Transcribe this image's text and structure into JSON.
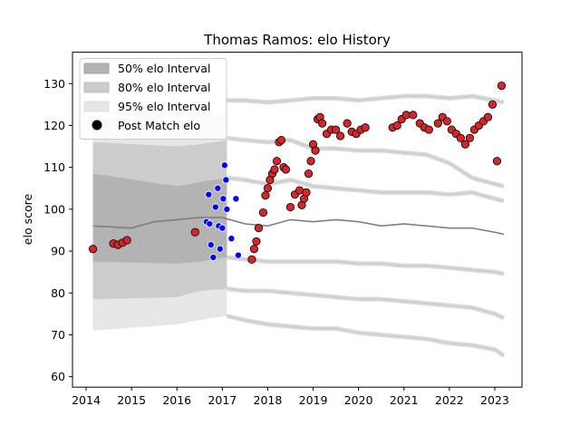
{
  "chart_data": {
    "type": "scatter",
    "title": "Thomas Ramos: elo History",
    "xlabel": "",
    "ylabel": "elo score",
    "xlim": [
      2013.7,
      2023.6
    ],
    "ylim": [
      57.5,
      137.5
    ],
    "xticks": [
      2014,
      2015,
      2016,
      2017,
      2018,
      2019,
      2020,
      2021,
      2022,
      2023
    ],
    "yticks": [
      60,
      70,
      80,
      90,
      100,
      110,
      120,
      130
    ],
    "grid": false,
    "legend_placement": "top-left",
    "legend": [
      {
        "key": "band50",
        "label": "50% elo Interval"
      },
      {
        "key": "band80",
        "label": "80% elo Interval"
      },
      {
        "key": "band95",
        "label": "95% elo Interval"
      },
      {
        "key": "points",
        "label": "Post Match elo"
      }
    ],
    "colors": {
      "band50": "#b3b3b3",
      "band80": "#cccccc",
      "band95": "#e6e6e6",
      "mean_line": "#7f7f7f",
      "point_red": "#d62728",
      "point_blue": "#0000ff",
      "point_edge": "#1f1f6e"
    },
    "intervals": {
      "shaded_range": [
        2014.15,
        2017.1
      ],
      "p50": {
        "x": [
          2014.15,
          2016.0,
          2016.5,
          2017.1
        ],
        "lower": [
          87.5,
          87.0,
          87.5,
          88.5
        ],
        "upper": [
          108.5,
          105.5,
          106.5,
          107.5
        ]
      },
      "p80": {
        "x": [
          2014.15,
          2016.0,
          2016.5,
          2017.1
        ],
        "lower": [
          78.5,
          79.0,
          80.5,
          81.0
        ],
        "upper": [
          116.0,
          115.0,
          115.5,
          116.5
        ]
      },
      "p95": {
        "x": [
          2014.15,
          2016.0,
          2016.5,
          2017.1
        ],
        "lower": [
          71.0,
          72.5,
          73.5,
          74.5
        ],
        "upper": [
          122.0,
          121.0,
          122.5,
          123.0
        ]
      }
    },
    "mean_line": {
      "x": [
        2014.15,
        2015.0,
        2015.5,
        2016.0,
        2016.5,
        2017.0,
        2017.5,
        2018.0,
        2018.5,
        2019.0,
        2019.5,
        2020.0,
        2020.5,
        2021.0,
        2021.5,
        2022.0,
        2022.5,
        2023.0,
        2023.2
      ],
      "y": [
        96.0,
        95.5,
        97.0,
        97.5,
        98.0,
        98.0,
        96.5,
        96.0,
        97.5,
        97.0,
        97.5,
        97.0,
        96.0,
        96.5,
        96.0,
        95.5,
        95.5,
        94.5,
        94.0
      ]
    },
    "faint_tracks": {
      "x": [
        2017.1,
        2017.5,
        2018.0,
        2018.5,
        2019.0,
        2019.5,
        2020.0,
        2020.5,
        2021.0,
        2021.5,
        2022.0,
        2022.5,
        2023.0,
        2023.2
      ],
      "series": [
        {
          "band": "upper95",
          "y": [
            126.0,
            126.0,
            125.5,
            126.0,
            126.5,
            126.5,
            126.0,
            126.5,
            127.0,
            127.0,
            126.5,
            127.0,
            126.0,
            125.5
          ]
        },
        {
          "band": "upper80",
          "y": [
            117.0,
            116.5,
            116.0,
            116.5,
            114.5,
            114.5,
            114.0,
            114.0,
            113.5,
            113.0,
            111.0,
            107.5,
            106.0,
            105.5
          ]
        },
        {
          "band": "upper50",
          "y": [
            107.5,
            107.0,
            106.0,
            107.0,
            105.5,
            105.0,
            104.5,
            104.0,
            104.0,
            104.0,
            103.5,
            104.0,
            102.5,
            102.0
          ]
        },
        {
          "band": "lower50",
          "y": [
            88.5,
            88.0,
            87.5,
            87.5,
            87.5,
            87.5,
            87.0,
            87.0,
            86.5,
            86.5,
            86.0,
            85.5,
            85.0,
            84.5
          ]
        },
        {
          "band": "lower80",
          "y": [
            81.0,
            80.5,
            80.5,
            80.0,
            79.5,
            79.0,
            78.5,
            78.5,
            78.0,
            77.5,
            77.0,
            76.5,
            75.0,
            74.0
          ]
        },
        {
          "band": "lower95",
          "y": [
            74.5,
            73.5,
            72.5,
            72.0,
            71.5,
            71.5,
            70.5,
            70.0,
            69.5,
            69.0,
            68.0,
            67.5,
            66.5,
            65.0
          ]
        }
      ]
    },
    "points_red": {
      "x": [
        2014.15,
        2014.6,
        2014.7,
        2014.8,
        2014.9,
        2016.4,
        2017.65,
        2017.7,
        2017.75,
        2017.8,
        2017.9,
        2017.95,
        2018.0,
        2018.05,
        2018.1,
        2018.15,
        2018.2,
        2018.25,
        2018.3,
        2018.35,
        2018.4,
        2018.5,
        2018.6,
        2018.7,
        2018.75,
        2018.8,
        2018.85,
        2018.9,
        2018.95,
        2019.0,
        2019.05,
        2019.1,
        2019.15,
        2019.2,
        2019.3,
        2019.4,
        2019.5,
        2019.6,
        2019.75,
        2019.85,
        2019.95,
        2020.05,
        2020.15,
        2020.75,
        2020.85,
        2020.95,
        2021.05,
        2021.2,
        2021.35,
        2021.45,
        2021.55,
        2021.75,
        2021.85,
        2021.95,
        2022.05,
        2022.15,
        2022.25,
        2022.35,
        2022.45,
        2022.55,
        2022.65,
        2022.75,
        2022.85,
        2022.95,
        2023.05,
        2023.15
      ],
      "y": [
        90.5,
        91.8,
        91.5,
        92.0,
        92.6,
        94.5,
        88.0,
        90.5,
        92.3,
        95.5,
        99.2,
        103.3,
        105.0,
        107.0,
        108.5,
        109.5,
        111.5,
        116.0,
        116.5,
        110.0,
        109.5,
        100.5,
        103.5,
        104.5,
        101.0,
        102.5,
        104.0,
        108.5,
        111.5,
        115.5,
        114.0,
        121.5,
        122.0,
        120.5,
        118.0,
        119.0,
        119.0,
        117.5,
        120.5,
        118.5,
        118.0,
        119.0,
        119.5,
        119.5,
        120.0,
        121.5,
        122.5,
        122.5,
        120.5,
        119.5,
        119.0,
        120.5,
        122.0,
        121.0,
        119.0,
        118.0,
        117.0,
        115.5,
        117.0,
        119.0,
        120.0,
        121.0,
        122.0,
        125.0,
        111.5,
        129.5
      ]
    },
    "points_blue": {
      "x": [
        2016.65,
        2016.7,
        2016.72,
        2016.75,
        2016.8,
        2016.85,
        2016.9,
        2016.92,
        2016.95,
        2017.0,
        2017.02,
        2017.05,
        2017.08,
        2017.1,
        2017.2,
        2017.3,
        2017.35
      ],
      "y": [
        97.0,
        103.5,
        96.5,
        91.5,
        88.5,
        100.5,
        105.0,
        96.0,
        90.5,
        95.5,
        102.5,
        110.5,
        107.0,
        100.0,
        93.0,
        102.5,
        89.0
      ]
    }
  }
}
